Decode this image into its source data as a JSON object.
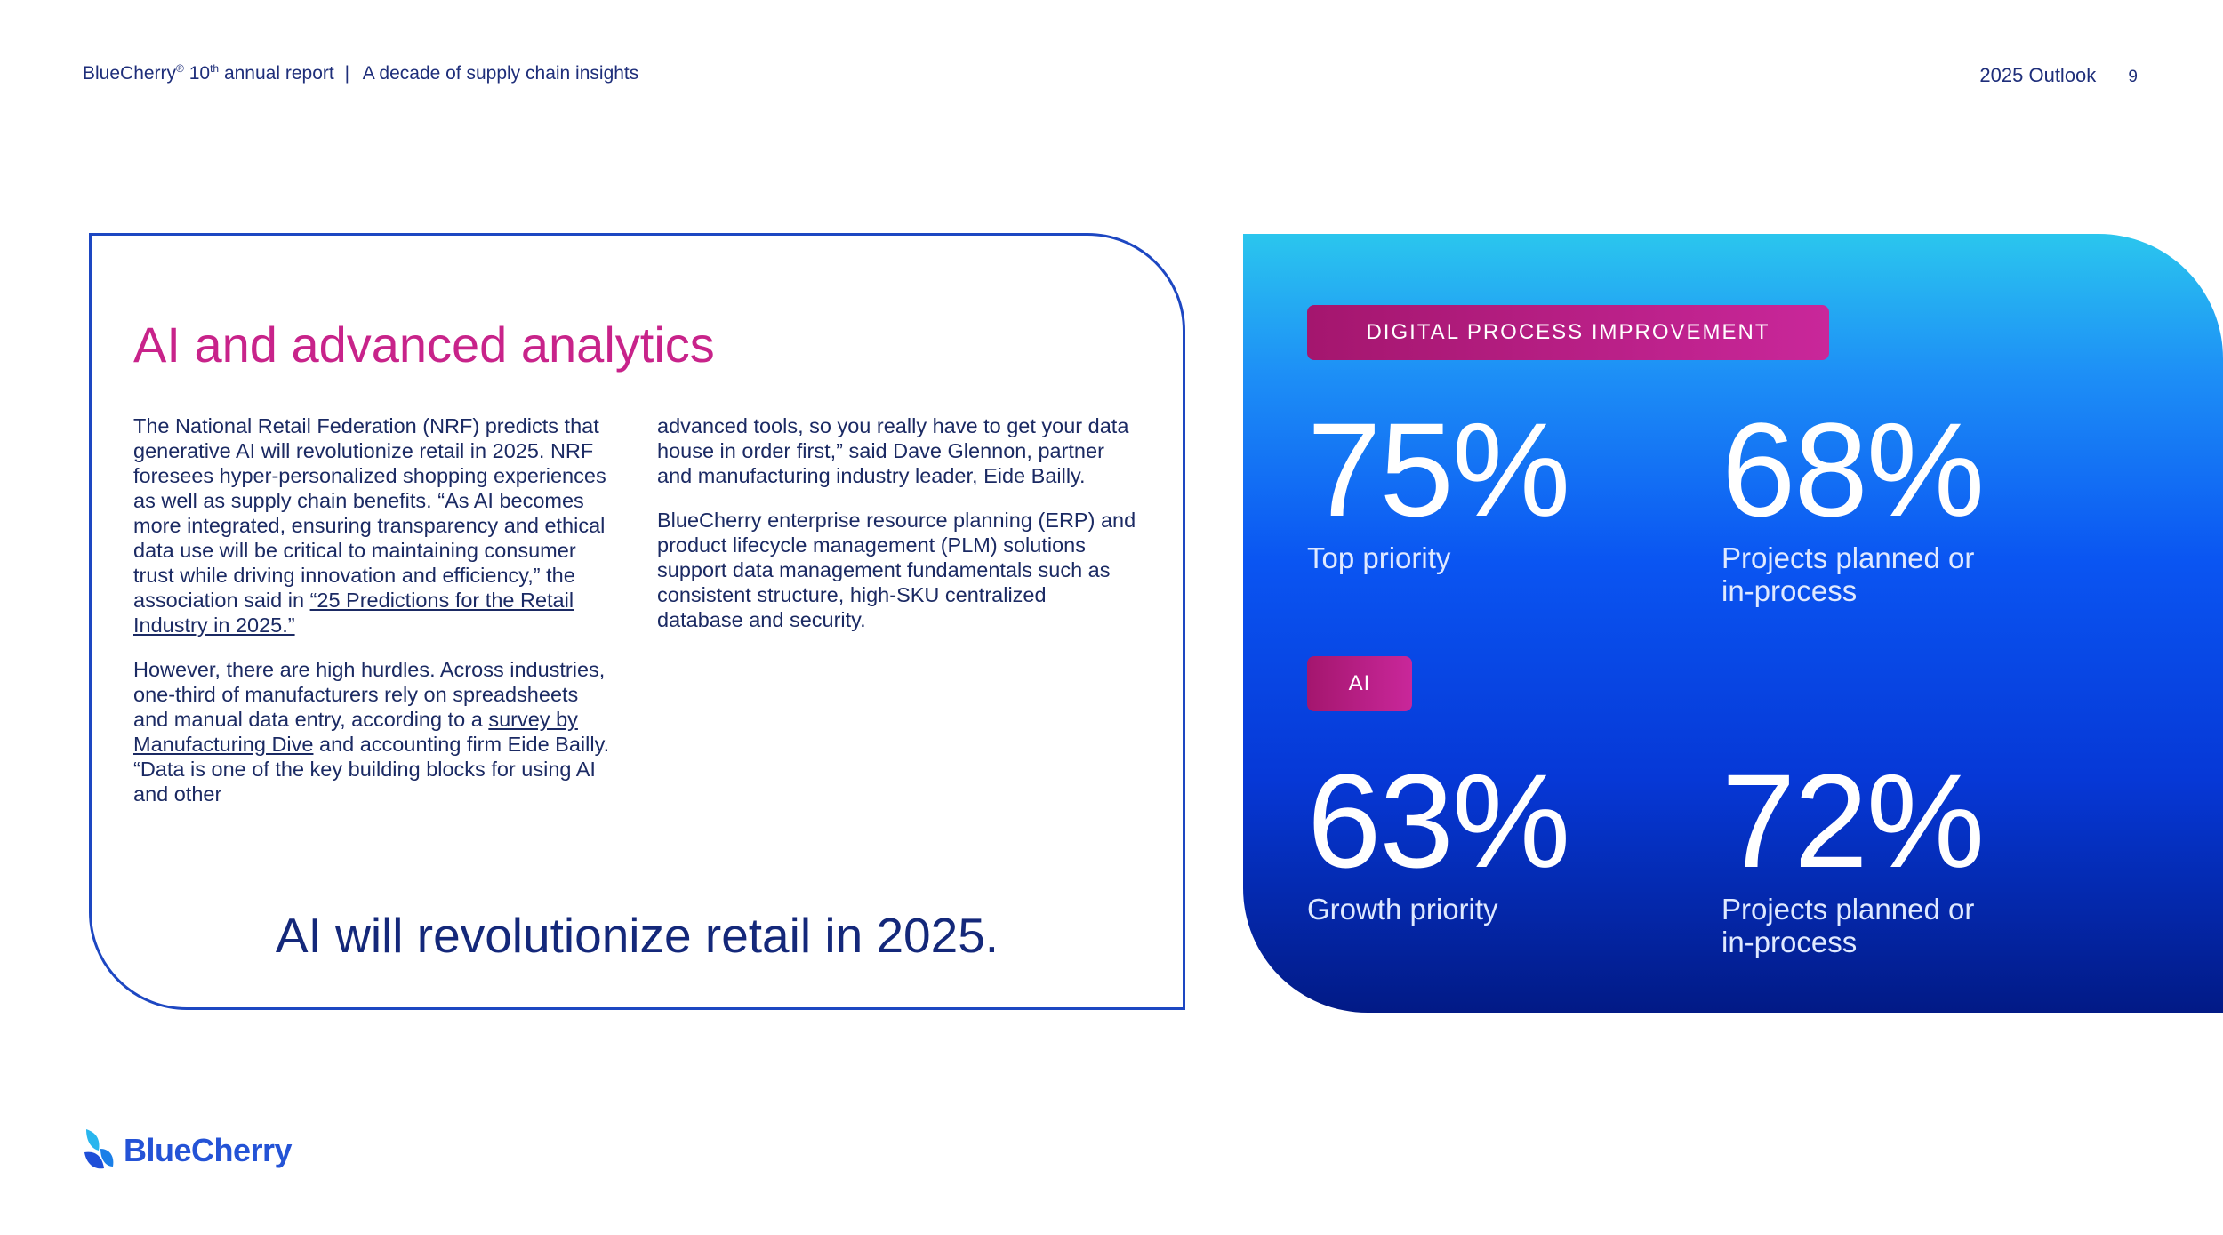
{
  "header": {
    "brand": "BlueCherry",
    "reg": "®",
    "ordinal_num": "10",
    "ordinal_suffix": "th",
    "report": "annual report",
    "separator": "|",
    "subtitle": "A decade of supply chain insights",
    "section": "2025 Outlook",
    "page_number": "9"
  },
  "card": {
    "title": "AI and advanced analytics",
    "col1_p1_text": "The National Retail Federation (NRF) predicts that generative AI will revolutionize retail in 2025. NRF foresees hyper-personalized shopping experiences as well as supply chain benefits. “As AI becomes more integrated, ensuring transparency and ethical data use will be critical to maintaining consumer trust while driving innovation and efficiency,” the association said in ",
    "col1_p1_link": "“25 Predictions for the Retail Industry in 2025.”",
    "col1_p2_text": "However, there are high hurdles. Across industries, one-third of manufacturers rely on spreadsheets and manual data entry, according to a ",
    "col1_p2_link": "survey by Manufacturing Dive",
    "col1_p2_tail": " and accounting firm Eide Bailly. “Data is one of the key building blocks for using AI and other",
    "col2_p1": "advanced tools, so you really have to get your data house in order first,” said Dave Glennon, partner and manufacturing industry leader, Eide Bailly.",
    "col2_p2": "BlueCherry enterprise resource planning (ERP) and product lifecycle management (PLM) solutions support data management fundamentals such as consistent structure, high-SKU centralized database and security.",
    "tagline": "AI will revolutionize retail in 2025."
  },
  "panel": {
    "pill1": "DIGITAL PROCESS IMPROVEMENT",
    "pill2": "AI",
    "stats": [
      {
        "value": "75%",
        "label": "Top priority"
      },
      {
        "value": "68%",
        "label": "Projects planned or in-process"
      },
      {
        "value": "63%",
        "label": "Growth priority"
      },
      {
        "value": "72%",
        "label": "Projects planned or in-process"
      }
    ]
  },
  "footer": {
    "logo_text": "BlueCherry"
  }
}
